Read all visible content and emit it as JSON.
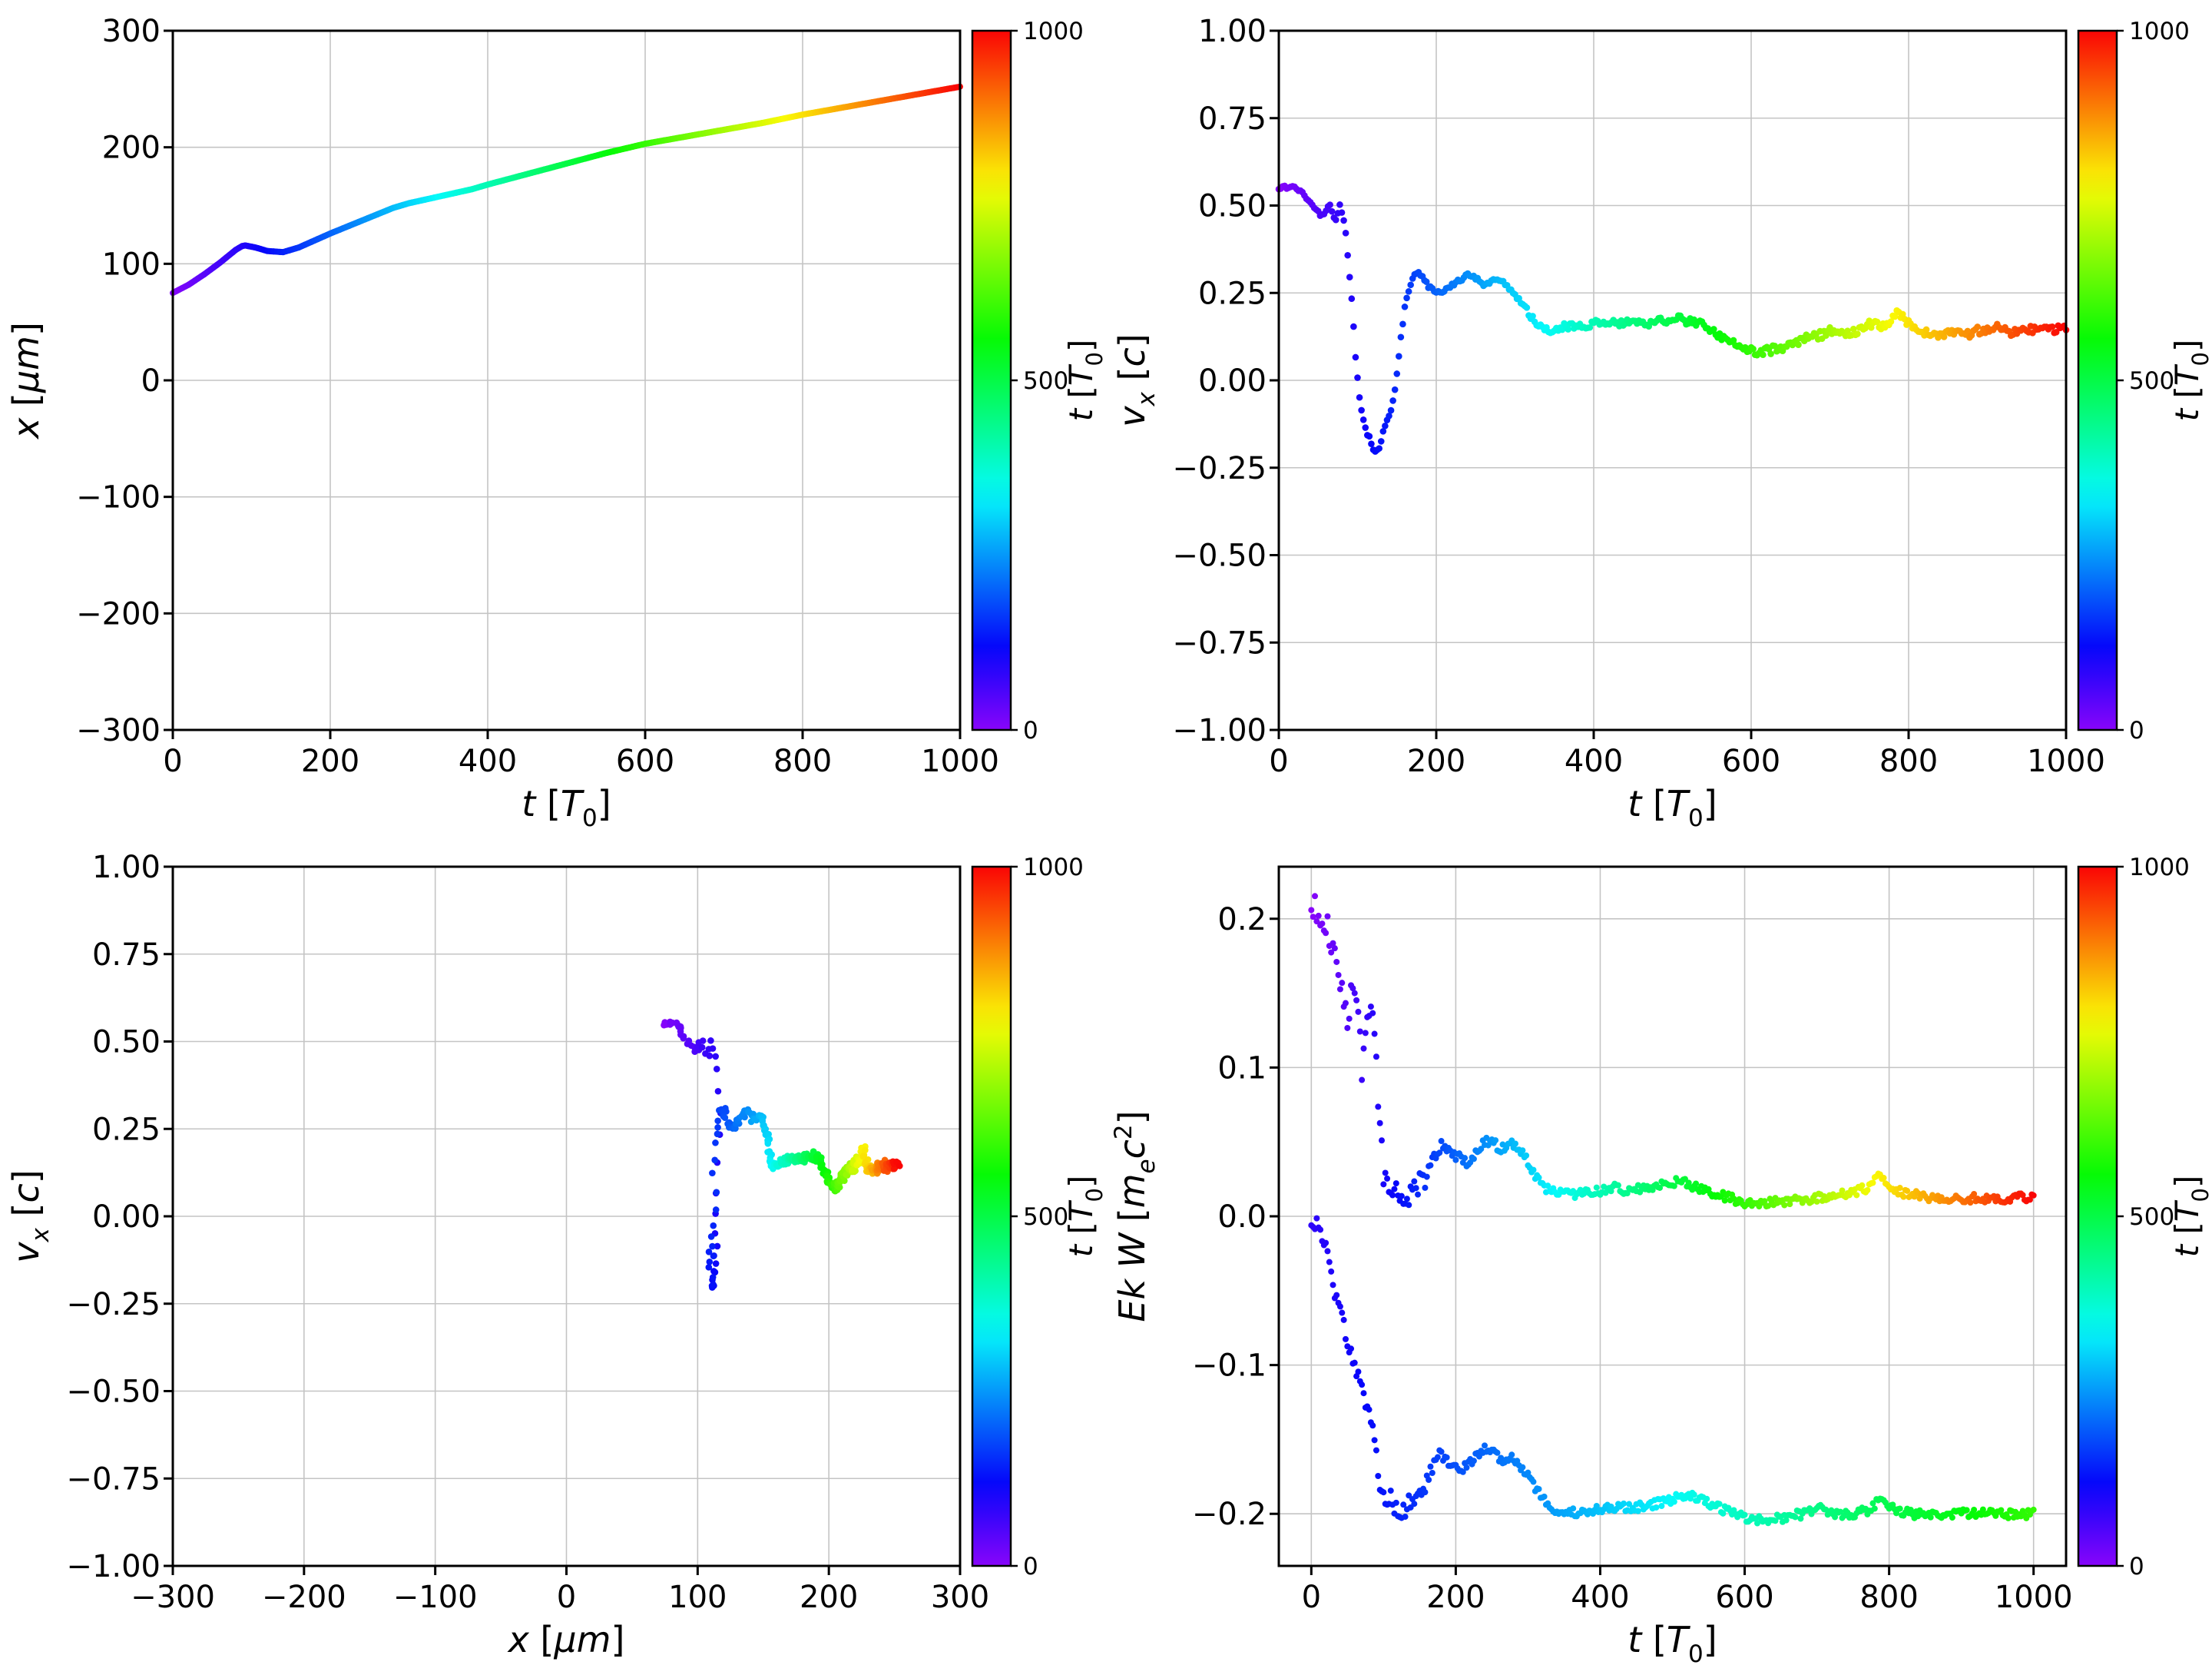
{
  "figure": {
    "background": "#ffffff",
    "grid_color": "#c4c4c4",
    "axis_color": "#000000"
  },
  "chart_data": {
    "type": "scatter",
    "colormap": "rainbow",
    "colorbar": {
      "min": 0,
      "max": 1000,
      "tick_values": [
        0,
        500,
        1000
      ],
      "tick_labels": [
        "0",
        "500",
        "1000"
      ],
      "label": "cb_t_T0"
    },
    "labels": {
      "t_T0": [
        {
          "t": "t",
          "i": true
        },
        {
          "t": "  ["
        },
        {
          "t": "T",
          "i": true
        },
        {
          "t": "0",
          "sub": true
        },
        {
          "t": "]"
        }
      ],
      "cb_t_T0": [
        {
          "t": "t",
          "i": true
        },
        {
          "t": " ["
        },
        {
          "t": "T",
          "i": true
        },
        {
          "t": "0",
          "sub": true
        },
        {
          "t": "]"
        }
      ],
      "x_um": [
        {
          "t": "x",
          "i": true
        },
        {
          "t": "  ["
        },
        {
          "t": "µm",
          "i": true
        },
        {
          "t": "]"
        }
      ],
      "vx_c": [
        {
          "t": "v",
          "i": true
        },
        {
          "t": "x",
          "i": true,
          "sub": true
        },
        {
          "t": " ["
        },
        {
          "t": "c",
          "i": true
        },
        {
          "t": "]"
        }
      ],
      "ekw": [
        {
          "t": "Ek W",
          "i": true
        },
        {
          "t": " ["
        },
        {
          "t": "m",
          "i": true
        },
        {
          "t": "e",
          "i": true,
          "sub": true
        },
        {
          "t": "c",
          "i": true
        },
        {
          "t": "2",
          "sup": true
        },
        {
          "t": "]"
        }
      ]
    },
    "curves": {
      "x_of_t": [
        [
          0,
          75
        ],
        [
          20,
          82
        ],
        [
          40,
          91
        ],
        [
          60,
          101
        ],
        [
          80,
          112
        ],
        [
          90,
          116
        ],
        [
          105,
          114
        ],
        [
          120,
          111
        ],
        [
          140,
          110
        ],
        [
          160,
          114
        ],
        [
          180,
          120
        ],
        [
          200,
          126
        ],
        [
          240,
          137
        ],
        [
          280,
          148
        ],
        [
          300,
          152
        ],
        [
          340,
          158
        ],
        [
          380,
          164
        ],
        [
          400,
          168
        ],
        [
          450,
          177
        ],
        [
          500,
          186
        ],
        [
          550,
          195
        ],
        [
          600,
          203
        ],
        [
          650,
          209
        ],
        [
          700,
          215
        ],
        [
          750,
          221
        ],
        [
          800,
          228
        ],
        [
          850,
          234
        ],
        [
          900,
          240
        ],
        [
          950,
          246
        ],
        [
          1000,
          252
        ]
      ],
      "v_of_t": [
        [
          0,
          0.55
        ],
        [
          15,
          0.555
        ],
        [
          30,
          0.54
        ],
        [
          45,
          0.49
        ],
        [
          55,
          0.47
        ],
        [
          65,
          0.5
        ],
        [
          72,
          0.45
        ],
        [
          78,
          0.51
        ],
        [
          85,
          0.42
        ],
        [
          92,
          0.25
        ],
        [
          98,
          0.05
        ],
        [
          104,
          -0.08
        ],
        [
          110,
          -0.14
        ],
        [
          116,
          -0.17
        ],
        [
          122,
          -0.21
        ],
        [
          128,
          -0.19
        ],
        [
          134,
          -0.13
        ],
        [
          142,
          -0.09
        ],
        [
          148,
          -0.02
        ],
        [
          154,
          0.1
        ],
        [
          160,
          0.21
        ],
        [
          168,
          0.28
        ],
        [
          175,
          0.31
        ],
        [
          182,
          0.3
        ],
        [
          190,
          0.27
        ],
        [
          200,
          0.25
        ],
        [
          212,
          0.26
        ],
        [
          225,
          0.28
        ],
        [
          240,
          0.3
        ],
        [
          252,
          0.29
        ],
        [
          262,
          0.27
        ],
        [
          272,
          0.29
        ],
        [
          285,
          0.28
        ],
        [
          295,
          0.26
        ],
        [
          305,
          0.23
        ],
        [
          315,
          0.2
        ],
        [
          325,
          0.17
        ],
        [
          335,
          0.15
        ],
        [
          350,
          0.14
        ],
        [
          365,
          0.155
        ],
        [
          380,
          0.15
        ],
        [
          400,
          0.16
        ],
        [
          420,
          0.17
        ],
        [
          435,
          0.16
        ],
        [
          455,
          0.17
        ],
        [
          470,
          0.165
        ],
        [
          490,
          0.17
        ],
        [
          505,
          0.18
        ],
        [
          520,
          0.17
        ],
        [
          540,
          0.155
        ],
        [
          560,
          0.125
        ],
        [
          580,
          0.1
        ],
        [
          600,
          0.085
        ],
        [
          615,
          0.08
        ],
        [
          630,
          0.09
        ],
        [
          650,
          0.1
        ],
        [
          670,
          0.12
        ],
        [
          690,
          0.13
        ],
        [
          705,
          0.145
        ],
        [
          715,
          0.135
        ],
        [
          725,
          0.13
        ],
        [
          740,
          0.15
        ],
        [
          752,
          0.16
        ],
        [
          765,
          0.155
        ],
        [
          778,
          0.175
        ],
        [
          788,
          0.2
        ],
        [
          795,
          0.17
        ],
        [
          805,
          0.15
        ],
        [
          820,
          0.14
        ],
        [
          840,
          0.13
        ],
        [
          858,
          0.14
        ],
        [
          875,
          0.13
        ],
        [
          893,
          0.145
        ],
        [
          910,
          0.15
        ],
        [
          930,
          0.14
        ],
        [
          950,
          0.15
        ],
        [
          970,
          0.14
        ],
        [
          1000,
          0.15
        ]
      ],
      "Ek_of_t": [
        [
          0,
          0.21
        ],
        [
          12,
          0.205
        ],
        [
          22,
          0.195
        ],
        [
          32,
          0.175
        ],
        [
          42,
          0.15
        ],
        [
          50,
          0.13
        ],
        [
          57,
          0.16
        ],
        [
          63,
          0.145
        ],
        [
          70,
          0.1
        ],
        [
          76,
          0.13
        ],
        [
          82,
          0.15
        ],
        [
          88,
          0.12
        ],
        [
          94,
          0.06
        ],
        [
          100,
          0.03
        ],
        [
          108,
          0.015
        ],
        [
          118,
          0.02
        ],
        [
          128,
          0.005
        ],
        [
          138,
          0.012
        ],
        [
          150,
          0.02
        ],
        [
          162,
          0.03
        ],
        [
          172,
          0.04
        ],
        [
          182,
          0.05
        ],
        [
          192,
          0.042
        ],
        [
          205,
          0.04
        ],
        [
          215,
          0.036
        ],
        [
          228,
          0.042
        ],
        [
          240,
          0.05
        ],
        [
          252,
          0.05
        ],
        [
          262,
          0.044
        ],
        [
          275,
          0.05
        ],
        [
          288,
          0.045
        ],
        [
          300,
          0.036
        ],
        [
          312,
          0.026
        ],
        [
          322,
          0.02
        ],
        [
          335,
          0.016
        ],
        [
          360,
          0.015
        ],
        [
          390,
          0.016
        ],
        [
          420,
          0.02
        ],
        [
          440,
          0.016
        ],
        [
          465,
          0.02
        ],
        [
          490,
          0.021
        ],
        [
          510,
          0.024
        ],
        [
          530,
          0.02
        ],
        [
          555,
          0.016
        ],
        [
          580,
          0.012
        ],
        [
          605,
          0.009
        ],
        [
          635,
          0.009
        ],
        [
          665,
          0.011
        ],
        [
          695,
          0.012
        ],
        [
          720,
          0.014
        ],
        [
          745,
          0.016
        ],
        [
          770,
          0.019
        ],
        [
          788,
          0.028
        ],
        [
          800,
          0.018
        ],
        [
          825,
          0.015
        ],
        [
          855,
          0.013
        ],
        [
          900,
          0.012
        ],
        [
          950,
          0.012
        ],
        [
          1000,
          0.013
        ]
      ],
      "W_of_t": [
        [
          0,
          -0.002
        ],
        [
          12,
          -0.01
        ],
        [
          25,
          -0.03
        ],
        [
          35,
          -0.055
        ],
        [
          45,
          -0.075
        ],
        [
          55,
          -0.09
        ],
        [
          65,
          -0.105
        ],
        [
          75,
          -0.125
        ],
        [
          85,
          -0.145
        ],
        [
          92,
          -0.17
        ],
        [
          100,
          -0.19
        ],
        [
          110,
          -0.19
        ],
        [
          120,
          -0.2
        ],
        [
          130,
          -0.196
        ],
        [
          140,
          -0.19
        ],
        [
          150,
          -0.186
        ],
        [
          160,
          -0.18
        ],
        [
          170,
          -0.166
        ],
        [
          180,
          -0.16
        ],
        [
          192,
          -0.166
        ],
        [
          205,
          -0.17
        ],
        [
          215,
          -0.168
        ],
        [
          228,
          -0.162
        ],
        [
          240,
          -0.156
        ],
        [
          252,
          -0.158
        ],
        [
          264,
          -0.165
        ],
        [
          276,
          -0.16
        ],
        [
          288,
          -0.167
        ],
        [
          300,
          -0.174
        ],
        [
          312,
          -0.184
        ],
        [
          322,
          -0.19
        ],
        [
          335,
          -0.198
        ],
        [
          350,
          -0.2
        ],
        [
          380,
          -0.198
        ],
        [
          420,
          -0.196
        ],
        [
          460,
          -0.195
        ],
        [
          500,
          -0.19
        ],
        [
          520,
          -0.187
        ],
        [
          545,
          -0.192
        ],
        [
          570,
          -0.197
        ],
        [
          600,
          -0.203
        ],
        [
          640,
          -0.204
        ],
        [
          680,
          -0.2
        ],
        [
          705,
          -0.196
        ],
        [
          720,
          -0.2
        ],
        [
          750,
          -0.2
        ],
        [
          775,
          -0.197
        ],
        [
          788,
          -0.19
        ],
        [
          800,
          -0.196
        ],
        [
          830,
          -0.2
        ],
        [
          870,
          -0.2
        ],
        [
          920,
          -0.2
        ],
        [
          960,
          -0.2
        ],
        [
          1000,
          -0.2
        ]
      ]
    },
    "plots": [
      {
        "id": "x-vs-t",
        "xlabel": "t_T0",
        "ylabel": "x_um",
        "xlim": [
          0,
          1000
        ],
        "ylim": [
          -300,
          300
        ],
        "xticks": {
          "values": [
            0,
            200,
            400,
            600,
            800,
            1000
          ],
          "labels": [
            "0",
            "200",
            "400",
            "600",
            "800",
            "1000"
          ]
        },
        "yticks": {
          "values": [
            -300,
            -200,
            -100,
            0,
            100,
            200,
            300
          ],
          "labels": [
            "−300",
            "−200",
            "−100",
            "0",
            "100",
            "200",
            "300"
          ]
        },
        "series": [
          {
            "name": "x(t)",
            "type": "line",
            "y_ref": "x_of_t",
            "width": 8,
            "step": 4
          }
        ]
      },
      {
        "id": "vx-vs-t",
        "xlabel": "t_T0",
        "ylabel": "vx_c",
        "xlim": [
          0,
          1000
        ],
        "ylim": [
          -1,
          1
        ],
        "xticks": {
          "values": [
            0,
            200,
            400,
            600,
            800,
            1000
          ],
          "labels": [
            "0",
            "200",
            "400",
            "600",
            "800",
            "1000"
          ]
        },
        "yticks": {
          "values": [
            -1,
            -0.75,
            -0.5,
            -0.25,
            0,
            0.25,
            0.5,
            0.75,
            1
          ],
          "labels": [
            "−1.00",
            "−0.75",
            "−0.50",
            "−0.25",
            "0.00",
            "0.25",
            "0.50",
            "0.75",
            "1.00"
          ]
        },
        "series": [
          {
            "name": "vx(t)",
            "type": "scatter",
            "y_ref": "v_of_t",
            "seed": 1,
            "size": 4.3,
            "step": 2.5,
            "jitter_anchors": [
              [
                0,
                0.005
              ],
              [
                300,
                0.006
              ],
              [
                320,
                0.011
              ],
              [
                1000,
                0.013
              ]
            ]
          }
        ]
      },
      {
        "id": "vx-vs-x",
        "xlabel": "x_um",
        "ylabel": "vx_c",
        "xlim": [
          -300,
          300
        ],
        "ylim": [
          -1,
          1
        ],
        "xticks": {
          "values": [
            -300,
            -200,
            -100,
            0,
            100,
            200,
            300
          ],
          "labels": [
            "−300",
            "−200",
            "−100",
            "0",
            "100",
            "200",
            "300"
          ]
        },
        "yticks": {
          "values": [
            -1,
            -0.75,
            -0.5,
            -0.25,
            0,
            0.25,
            0.5,
            0.75,
            1
          ],
          "labels": [
            "−1.00",
            "−0.75",
            "−0.50",
            "−0.25",
            "0.00",
            "0.25",
            "0.50",
            "0.75",
            "1.00"
          ]
        },
        "series": [
          {
            "name": "vx(x)",
            "type": "scatter",
            "y_ref": "v_of_t",
            "x_ref": "x_of_t",
            "seed": 1,
            "size": 4.3,
            "step": 2.5,
            "jitter_anchors": [
              [
                0,
                0.005
              ],
              [
                300,
                0.006
              ],
              [
                320,
                0.011
              ],
              [
                1000,
                0.013
              ]
            ],
            "x_jitter": 2
          }
        ]
      },
      {
        "id": "ekw-vs-t",
        "xlabel": "t_T0",
        "ylabel": "ekw",
        "xlim": [
          -45,
          1045
        ],
        "ylim": [
          -0.235,
          0.235
        ],
        "xticks": {
          "values": [
            0,
            200,
            400,
            600,
            800,
            1000
          ],
          "labels": [
            "0",
            "200",
            "400",
            "600",
            "800",
            "1000"
          ]
        },
        "yticks": {
          "values": [
            -0.2,
            -0.1,
            0,
            0.1,
            0.2
          ],
          "labels": [
            "−0.2",
            "−0.1",
            "0.0",
            "0.1",
            "0.2"
          ]
        },
        "series": [
          {
            "name": "Ek(t)",
            "type": "scatter",
            "y_ref": "Ek_of_t",
            "seed": 3,
            "size": 4.0,
            "step": 2.5,
            "jitter_anchors": [
              [
                0,
                0.009
              ],
              [
                150,
                0.009
              ],
              [
                190,
                0.003
              ],
              [
                1000,
                0.003
              ]
            ]
          },
          {
            "name": "W(t)",
            "type": "scatter",
            "y_ref": "W_of_t",
            "seed": 4,
            "size": 4.0,
            "step": 2.5,
            "jitter_anchors": [
              [
                0,
                0.007
              ],
              [
                150,
                0.007
              ],
              [
                190,
                0.003
              ],
              [
                1000,
                0.003
              ]
            ],
            "cfrac_anchors": [
              [
                0,
                0.08
              ],
              [
                1000,
                0.6
              ]
            ]
          }
        ]
      }
    ]
  }
}
